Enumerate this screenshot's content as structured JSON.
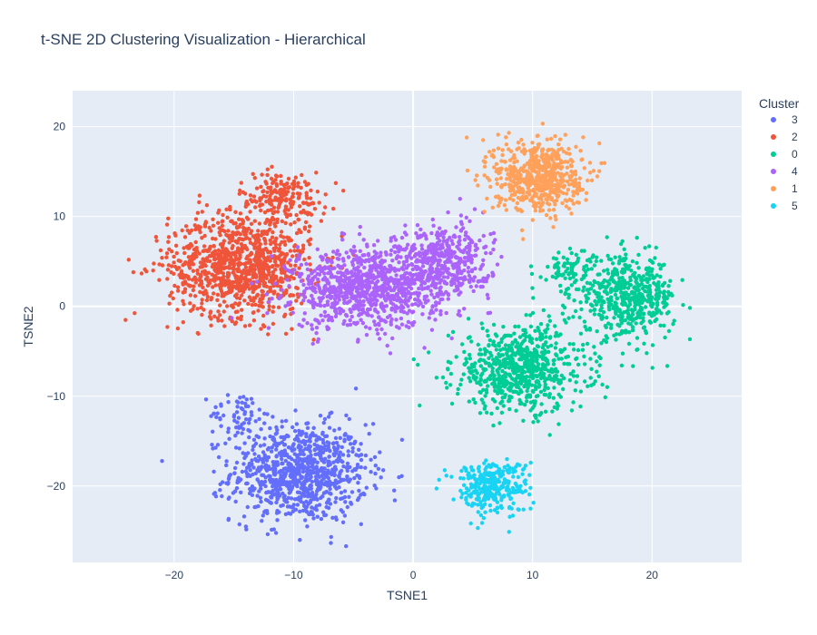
{
  "chart_data": {
    "type": "scatter",
    "title": "t-SNE 2D Clustering Visualization - Hierarchical",
    "xlabel": "TSNE1",
    "ylabel": "TSNE2",
    "xlim": [
      -28.5,
      27.5
    ],
    "ylim": [
      -28.5,
      24
    ],
    "xticks": [
      -20,
      -10,
      0,
      10,
      20
    ],
    "xtick_labels": [
      "−20",
      "−10",
      "0",
      "10",
      "20"
    ],
    "yticks": [
      -20,
      -10,
      0,
      10,
      20
    ],
    "ytick_labels": [
      "−20",
      "−10",
      "0",
      "10",
      "20"
    ],
    "grid": true,
    "background": "#e5ecf6",
    "legend": {
      "title": "Cluster",
      "position": "top-right"
    },
    "series": [
      {
        "name": "3",
        "color": "#636efa",
        "clusters": [
          {
            "cx": -9.5,
            "cy": -18.5,
            "sx": 4.6,
            "sy": 4.4,
            "n": 900
          },
          {
            "cx": -14.5,
            "cy": -12,
            "sx": 2.0,
            "sy": 2.0,
            "n": 60
          }
        ]
      },
      {
        "name": "2",
        "color": "#ef553b",
        "clusters": [
          {
            "cx": -14.5,
            "cy": 4.5,
            "sx": 4.8,
            "sy": 4.6,
            "n": 1000
          },
          {
            "cx": -11,
            "cy": 12,
            "sx": 3.0,
            "sy": 2.4,
            "n": 200
          }
        ]
      },
      {
        "name": "0",
        "color": "#00cc96",
        "clusters": [
          {
            "cx": 9,
            "cy": -7,
            "sx": 4.5,
            "sy": 3.8,
            "n": 700
          },
          {
            "cx": 18,
            "cy": 1,
            "sx": 3.2,
            "sy": 3.6,
            "n": 500
          },
          {
            "cx": 13,
            "cy": 4,
            "sx": 2.0,
            "sy": 2.0,
            "n": 80
          }
        ]
      },
      {
        "name": "4",
        "color": "#ab63fa",
        "clusters": [
          {
            "cx": -4,
            "cy": 2,
            "sx": 5.0,
            "sy": 3.6,
            "n": 900
          },
          {
            "cx": 2.5,
            "cy": 5,
            "sx": 3.2,
            "sy": 3.4,
            "n": 450
          }
        ]
      },
      {
        "name": "1",
        "color": "#ffa15a",
        "clusters": [
          {
            "cx": 10.5,
            "cy": 14.5,
            "sx": 3.0,
            "sy": 3.2,
            "n": 600
          }
        ]
      },
      {
        "name": "5",
        "color": "#19d3f3",
        "clusters": [
          {
            "cx": 6.5,
            "cy": -20,
            "sx": 2.5,
            "sy": 2.4,
            "n": 300
          }
        ]
      }
    ]
  }
}
